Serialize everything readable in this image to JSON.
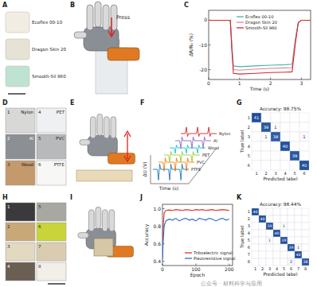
{
  "panel_labels": [
    "A",
    "B",
    "C",
    "D",
    "E",
    "F",
    "G",
    "H",
    "I",
    "J",
    "K"
  ],
  "panel_a": {
    "materials": [
      "Ecoflex 00-10",
      "Dragon Skin 20",
      "Smooth-Sil 960"
    ]
  },
  "panel_b": {
    "annotation": "Press"
  },
  "panel_d": {
    "materials": [
      {
        "number": 1,
        "name": "Nylon"
      },
      {
        "number": 2,
        "name": "Al"
      },
      {
        "number": 3,
        "name": "Wood"
      },
      {
        "number": 4,
        "name": "PET"
      },
      {
        "number": 5,
        "name": "PVC"
      },
      {
        "number": 6,
        "name": "PTFE"
      }
    ]
  },
  "panel_h": {
    "numbers": [
      1,
      2,
      3,
      4,
      5,
      6,
      7,
      8
    ]
  },
  "watermark": "公众号 · 材料科学与应用",
  "chart_data": [
    {
      "type": "line",
      "x_label": "Time (s)",
      "y_label": "ΔR/R₀ (%)",
      "x": [
        0,
        0.5,
        0.7,
        0.75,
        0.8,
        1.0,
        1.5,
        2.0,
        2.5,
        2.7,
        2.8,
        2.9,
        3.0,
        3.3
      ],
      "series": [
        {
          "name": "Ecoflex 00-10",
          "color": "#3fb8a8",
          "values": [
            0,
            0,
            0,
            -10,
            -18.5,
            -18.8,
            -18.5,
            -18.2,
            -18,
            -17.8,
            -8,
            -1,
            0,
            0
          ]
        },
        {
          "name": "Dragon Skin 20",
          "color": "#e87ca0",
          "values": [
            0,
            0,
            0,
            -11,
            -20,
            -20.2,
            -19.8,
            -19.5,
            -19.3,
            -19.2,
            -9,
            -1,
            0,
            0
          ]
        },
        {
          "name": "Smooth-Sil 960",
          "color": "#d62728",
          "values": [
            0,
            0,
            0,
            -12,
            -21.5,
            -21.8,
            -21.5,
            -21.2,
            -21,
            -20.9,
            -10,
            -1,
            0,
            0
          ]
        }
      ],
      "xlim": [
        0,
        3.3
      ],
      "ylim": [
        -24,
        4
      ],
      "xticks": [
        0,
        1,
        2,
        3
      ],
      "yticks": [
        0,
        -10,
        -20
      ],
      "legend": "upper center"
    },
    {
      "type": "line",
      "x_label": "Time (s)",
      "y_label": "ΔU (V)",
      "tick_labels": false,
      "x": [
        0,
        0.4,
        0.5,
        0.6,
        0.7,
        1.4,
        1.5,
        1.6,
        1.7,
        2.4,
        2.5,
        2.6,
        2.7,
        3.2
      ],
      "series": [
        {
          "name": "PTFE",
          "color": "#1f77b4",
          "values": [
            0,
            0,
            -3,
            1.5,
            0,
            0,
            -3,
            1.5,
            0,
            0,
            -3,
            1.5,
            0,
            0
          ]
        },
        {
          "name": "PVC",
          "color": "#ff7f0e",
          "values": [
            0,
            0,
            -2.5,
            1.2,
            0,
            0,
            -2.5,
            1.2,
            0,
            0,
            -2.5,
            1.2,
            0,
            0
          ]
        },
        {
          "name": "PET",
          "color": "#9acd32",
          "values": [
            0,
            0,
            -2,
            1,
            0,
            0,
            -2,
            1,
            0,
            0,
            -2,
            1,
            0,
            0
          ]
        },
        {
          "name": "Wood",
          "color": "#17becf",
          "values": [
            0,
            0,
            -1.5,
            0.8,
            0,
            0,
            -1.5,
            0.8,
            0,
            0,
            -1.5,
            0.8,
            0,
            0
          ]
        },
        {
          "name": "Al",
          "color": "#9467bd",
          "values": [
            0,
            0,
            -2.2,
            1.1,
            0,
            0,
            -2.2,
            1.1,
            0,
            0,
            -2.2,
            1.1,
            0,
            0
          ]
        },
        {
          "name": "Nylon",
          "color": "#d62728",
          "values": [
            0,
            0,
            1.8,
            -0.8,
            0,
            0,
            1.8,
            -0.8,
            0,
            0,
            1.8,
            -0.8,
            0,
            0
          ]
        }
      ],
      "xlim": [
        0,
        3.2
      ],
      "ylim": [
        -4,
        4
      ]
    },
    {
      "type": "heatmap",
      "title": "Accuracy: 98.75%",
      "x_label": "Predicted label",
      "y_label": "True label",
      "categories": [
        1,
        2,
        3,
        4,
        5,
        6
      ],
      "cells": [
        [
          41,
          0,
          0,
          0,
          0,
          0
        ],
        [
          0,
          39,
          1,
          0,
          0,
          0
        ],
        [
          0,
          1,
          38,
          0,
          0,
          1
        ],
        [
          0,
          0,
          0,
          40,
          0,
          0
        ],
        [
          0,
          0,
          0,
          0,
          39,
          0
        ],
        [
          0,
          0,
          0,
          0,
          0,
          40
        ]
      ],
      "color": "#1f4e9c"
    },
    {
      "type": "line",
      "x_label": "Epoch",
      "y_label": "Accuracy",
      "x": [
        0,
        2,
        5,
        10,
        20,
        30,
        40,
        50,
        60,
        70,
        80,
        90,
        100,
        110,
        120,
        130,
        140,
        150,
        160,
        170,
        180,
        190,
        200
      ],
      "series": [
        {
          "name": "Triboelectric signal",
          "color": "#e0312b",
          "values": [
            0.45,
            0.78,
            0.95,
            0.98,
            0.985,
            0.98,
            0.99,
            0.985,
            0.98,
            0.99,
            0.985,
            0.98,
            0.99,
            0.985,
            0.99,
            0.98,
            0.985,
            0.99,
            0.98,
            0.985,
            0.99,
            0.985,
            0.98
          ]
        },
        {
          "name": "Piezoresistive signal",
          "color": "#2b6cc4",
          "values": [
            0.42,
            0.62,
            0.8,
            0.86,
            0.88,
            0.87,
            0.89,
            0.86,
            0.88,
            0.89,
            0.87,
            0.88,
            0.86,
            0.89,
            0.88,
            0.87,
            0.89,
            0.88,
            0.86,
            0.88,
            0.89,
            0.87,
            0.88
          ]
        }
      ],
      "xlim": [
        0,
        210
      ],
      "ylim": [
        0.35,
        1.05
      ],
      "xticks": [
        0,
        100,
        200
      ],
      "yticks": [
        0.4,
        0.6,
        0.8,
        {
          "value": 1,
          "label": "1.0"
        }
      ],
      "legend": "lower right"
    },
    {
      "type": "heatmap",
      "title": "Accuracy: 98.44%",
      "x_label": "Predicted label",
      "y_label": "True label",
      "categories": [
        1,
        2,
        3,
        4,
        5,
        6,
        7,
        8
      ],
      "cells": [
        [
          40,
          0,
          0,
          0,
          0,
          0,
          0,
          0
        ],
        [
          0,
          40,
          0,
          0,
          0,
          0,
          0,
          0
        ],
        [
          0,
          0,
          39,
          0,
          1,
          0,
          0,
          0
        ],
        [
          0,
          0,
          0,
          40,
          0,
          0,
          0,
          0
        ],
        [
          0,
          0,
          1,
          0,
          39,
          0,
          0,
          0
        ],
        [
          0,
          0,
          0,
          0,
          0,
          39,
          1,
          0
        ],
        [
          0,
          0,
          0,
          0,
          0,
          0,
          40,
          0
        ],
        [
          0,
          0,
          0,
          0,
          0,
          2,
          0,
          38
        ]
      ],
      "color": "#1f4e9c"
    }
  ]
}
